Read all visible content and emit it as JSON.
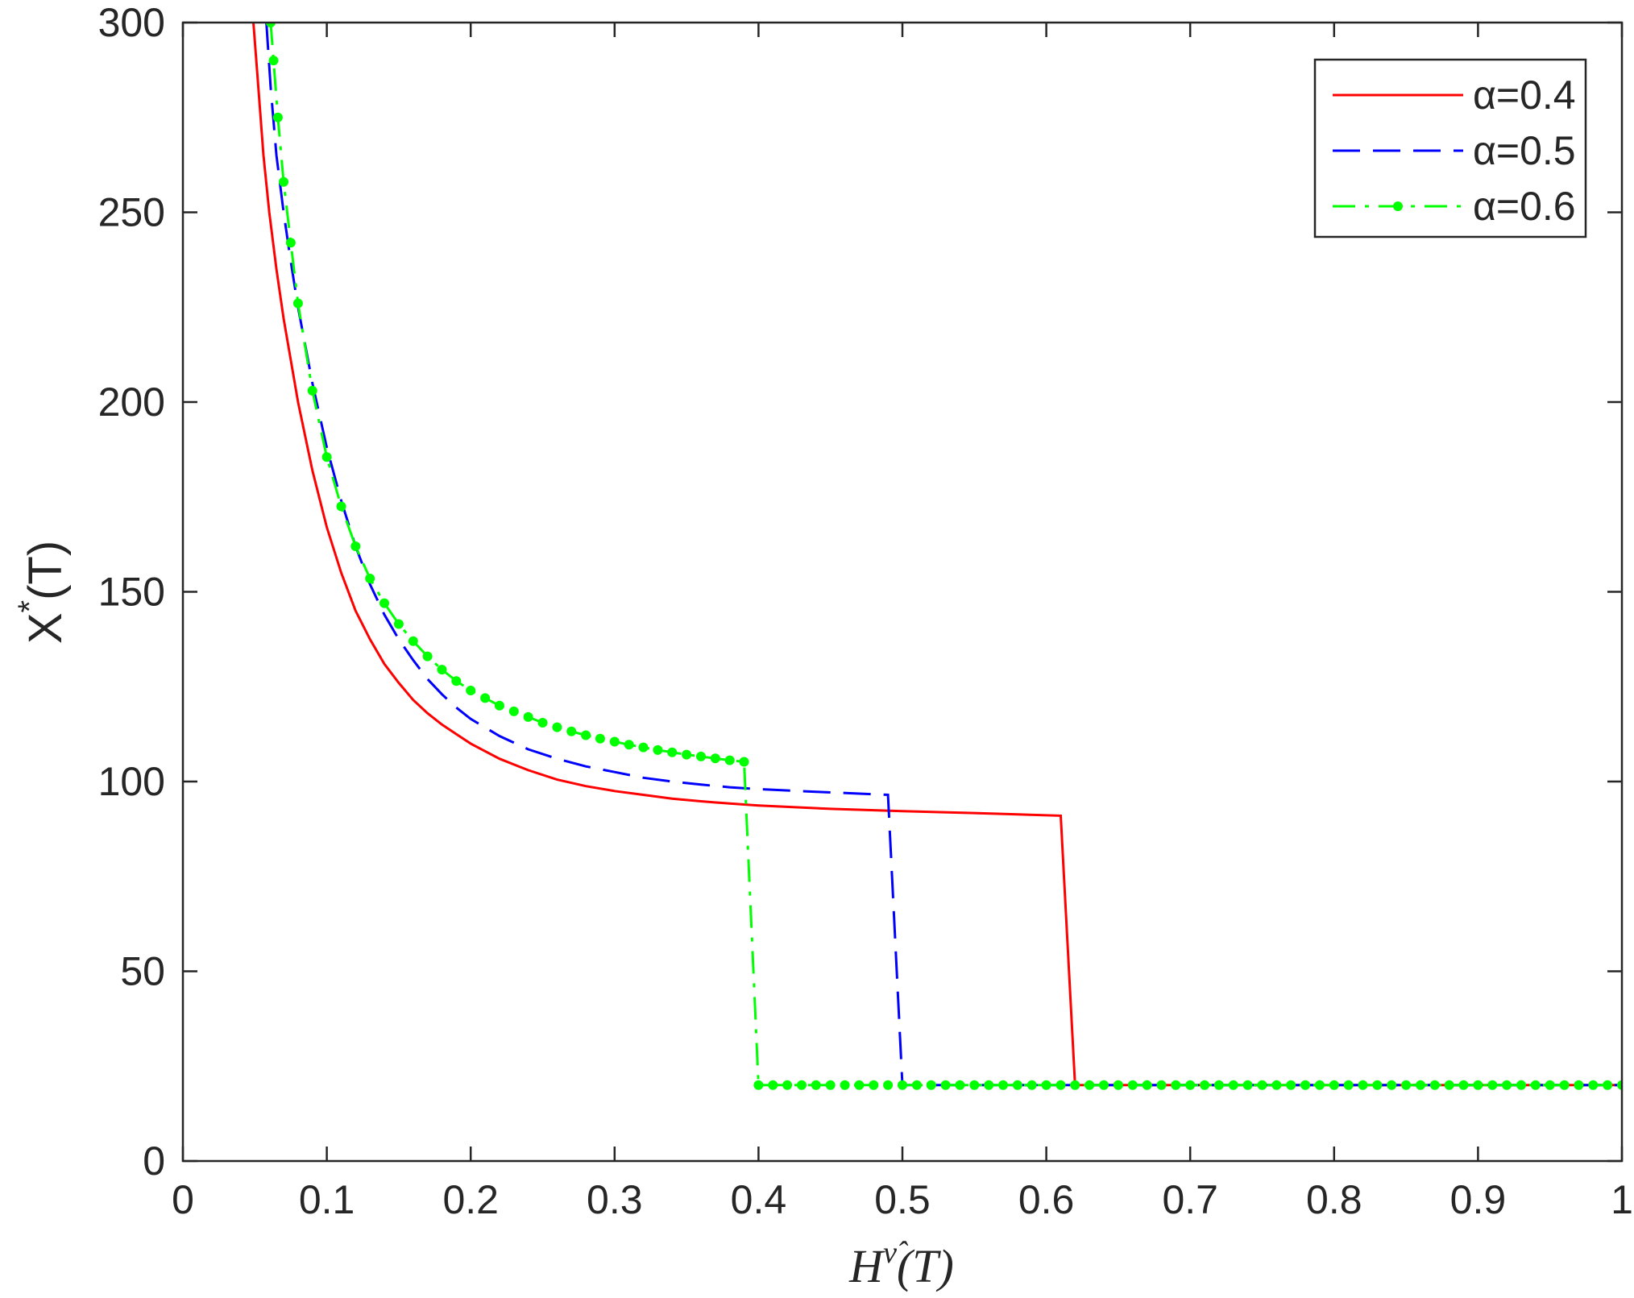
{
  "chart_data": {
    "type": "line",
    "title": "",
    "xlabel": {
      "base": "H",
      "superscript": "ν̂",
      "suffix": "(T)"
    },
    "ylabel": {
      "base": "X",
      "superscript": "*",
      "suffix": "(T)"
    },
    "xlim": [
      0,
      1
    ],
    "ylim": [
      0,
      300
    ],
    "xticks": [
      0,
      0.1,
      0.2,
      0.3,
      0.4,
      0.5,
      0.6,
      0.7,
      0.8,
      0.9,
      1
    ],
    "xtick_labels": [
      "0",
      "0.1",
      "0.2",
      "0.3",
      "0.4",
      "0.5",
      "0.6",
      "0.7",
      "0.8",
      "0.9",
      "1"
    ],
    "yticks": [
      0,
      50,
      100,
      150,
      200,
      250,
      300
    ],
    "ytick_labels": [
      "0",
      "50",
      "100",
      "150",
      "200",
      "250",
      "300"
    ],
    "grid": false,
    "legend_position": "top-right",
    "series": [
      {
        "name": "α=0.4",
        "color": "#ff0000",
        "style": "solid",
        "markers": false,
        "points": [
          [
            0.049,
            300
          ],
          [
            0.052,
            285
          ],
          [
            0.056,
            265
          ],
          [
            0.06,
            250
          ],
          [
            0.065,
            235
          ],
          [
            0.07,
            222
          ],
          [
            0.08,
            200
          ],
          [
            0.09,
            182
          ],
          [
            0.1,
            167
          ],
          [
            0.11,
            155
          ],
          [
            0.12,
            145
          ],
          [
            0.13,
            137.5
          ],
          [
            0.14,
            131
          ],
          [
            0.15,
            126
          ],
          [
            0.16,
            121.5
          ],
          [
            0.17,
            118
          ],
          [
            0.18,
            115
          ],
          [
            0.19,
            112.5
          ],
          [
            0.2,
            110
          ],
          [
            0.22,
            106
          ],
          [
            0.24,
            103
          ],
          [
            0.26,
            100.5
          ],
          [
            0.28,
            98.8
          ],
          [
            0.3,
            97.5
          ],
          [
            0.32,
            96.5
          ],
          [
            0.34,
            95.5
          ],
          [
            0.36,
            94.8
          ],
          [
            0.38,
            94.2
          ],
          [
            0.4,
            93.7
          ],
          [
            0.45,
            92.8
          ],
          [
            0.5,
            92.2
          ],
          [
            0.55,
            91.7
          ],
          [
            0.61,
            91
          ],
          [
            0.62,
            20
          ],
          [
            1.0,
            20
          ]
        ]
      },
      {
        "name": "α=0.5",
        "color": "#0000ff",
        "style": "dashed",
        "markers": false,
        "points": [
          [
            0.058,
            300
          ],
          [
            0.061,
            283
          ],
          [
            0.065,
            265
          ],
          [
            0.07,
            250
          ],
          [
            0.075,
            237
          ],
          [
            0.08,
            225
          ],
          [
            0.09,
            205
          ],
          [
            0.1,
            188
          ],
          [
            0.11,
            174
          ],
          [
            0.12,
            162
          ],
          [
            0.13,
            152
          ],
          [
            0.14,
            144
          ],
          [
            0.15,
            137.5
          ],
          [
            0.16,
            132
          ],
          [
            0.17,
            127
          ],
          [
            0.18,
            123
          ],
          [
            0.19,
            119.5
          ],
          [
            0.2,
            116.5
          ],
          [
            0.22,
            112
          ],
          [
            0.24,
            108.5
          ],
          [
            0.26,
            106
          ],
          [
            0.28,
            104
          ],
          [
            0.3,
            102.5
          ],
          [
            0.32,
            101
          ],
          [
            0.34,
            100
          ],
          [
            0.36,
            99.2
          ],
          [
            0.38,
            98.5
          ],
          [
            0.4,
            98
          ],
          [
            0.44,
            97.3
          ],
          [
            0.49,
            96.5
          ],
          [
            0.5,
            20
          ],
          [
            1.0,
            20
          ]
        ]
      },
      {
        "name": "α=0.6",
        "color": "#00ff00",
        "style": "dashdot",
        "markers": true,
        "points": [
          [
            0.061,
            300
          ],
          [
            0.063,
            290
          ],
          [
            0.066,
            275
          ],
          [
            0.07,
            258
          ],
          [
            0.075,
            242
          ],
          [
            0.08,
            226
          ],
          [
            0.09,
            203
          ],
          [
            0.1,
            185.5
          ],
          [
            0.11,
            172.5
          ],
          [
            0.12,
            162
          ],
          [
            0.13,
            153.5
          ],
          [
            0.14,
            147
          ],
          [
            0.15,
            141.5
          ],
          [
            0.16,
            137
          ],
          [
            0.17,
            133
          ],
          [
            0.18,
            129.5
          ],
          [
            0.19,
            126.5
          ],
          [
            0.2,
            124
          ],
          [
            0.21,
            122
          ],
          [
            0.22,
            120
          ],
          [
            0.23,
            118.5
          ],
          [
            0.24,
            117
          ],
          [
            0.25,
            115.5
          ],
          [
            0.26,
            114.3
          ],
          [
            0.27,
            113.2
          ],
          [
            0.28,
            112.2
          ],
          [
            0.29,
            111.3
          ],
          [
            0.3,
            110.5
          ],
          [
            0.31,
            109.7
          ],
          [
            0.32,
            109
          ],
          [
            0.33,
            108.3
          ],
          [
            0.34,
            107.7
          ],
          [
            0.35,
            107.1
          ],
          [
            0.36,
            106.6
          ],
          [
            0.37,
            106.1
          ],
          [
            0.38,
            105.6
          ],
          [
            0.39,
            105.2
          ],
          [
            0.4,
            20
          ],
          [
            0.41,
            20
          ],
          [
            0.42,
            20
          ],
          [
            0.43,
            20
          ],
          [
            0.44,
            20
          ],
          [
            0.45,
            20
          ],
          [
            0.46,
            20
          ],
          [
            0.47,
            20
          ],
          [
            0.48,
            20
          ],
          [
            0.49,
            20
          ],
          [
            0.5,
            20
          ],
          [
            0.51,
            20
          ],
          [
            0.52,
            20
          ],
          [
            0.53,
            20
          ],
          [
            0.54,
            20
          ],
          [
            0.55,
            20
          ],
          [
            0.56,
            20
          ],
          [
            0.57,
            20
          ],
          [
            0.58,
            20
          ],
          [
            0.59,
            20
          ],
          [
            0.6,
            20
          ],
          [
            0.61,
            20
          ],
          [
            0.62,
            20
          ],
          [
            0.63,
            20
          ],
          [
            0.64,
            20
          ],
          [
            0.65,
            20
          ],
          [
            0.66,
            20
          ],
          [
            0.67,
            20
          ],
          [
            0.68,
            20
          ],
          [
            0.69,
            20
          ],
          [
            0.7,
            20
          ],
          [
            0.71,
            20
          ],
          [
            0.72,
            20
          ],
          [
            0.73,
            20
          ],
          [
            0.74,
            20
          ],
          [
            0.75,
            20
          ],
          [
            0.76,
            20
          ],
          [
            0.77,
            20
          ],
          [
            0.78,
            20
          ],
          [
            0.79,
            20
          ],
          [
            0.8,
            20
          ],
          [
            0.81,
            20
          ],
          [
            0.82,
            20
          ],
          [
            0.83,
            20
          ],
          [
            0.84,
            20
          ],
          [
            0.85,
            20
          ],
          [
            0.86,
            20
          ],
          [
            0.87,
            20
          ],
          [
            0.88,
            20
          ],
          [
            0.89,
            20
          ],
          [
            0.9,
            20
          ],
          [
            0.91,
            20
          ],
          [
            0.92,
            20
          ],
          [
            0.93,
            20
          ],
          [
            0.94,
            20
          ],
          [
            0.95,
            20
          ],
          [
            0.96,
            20
          ],
          [
            0.97,
            20
          ],
          [
            0.98,
            20
          ],
          [
            0.99,
            20
          ],
          [
            1.0,
            20
          ]
        ]
      }
    ]
  }
}
